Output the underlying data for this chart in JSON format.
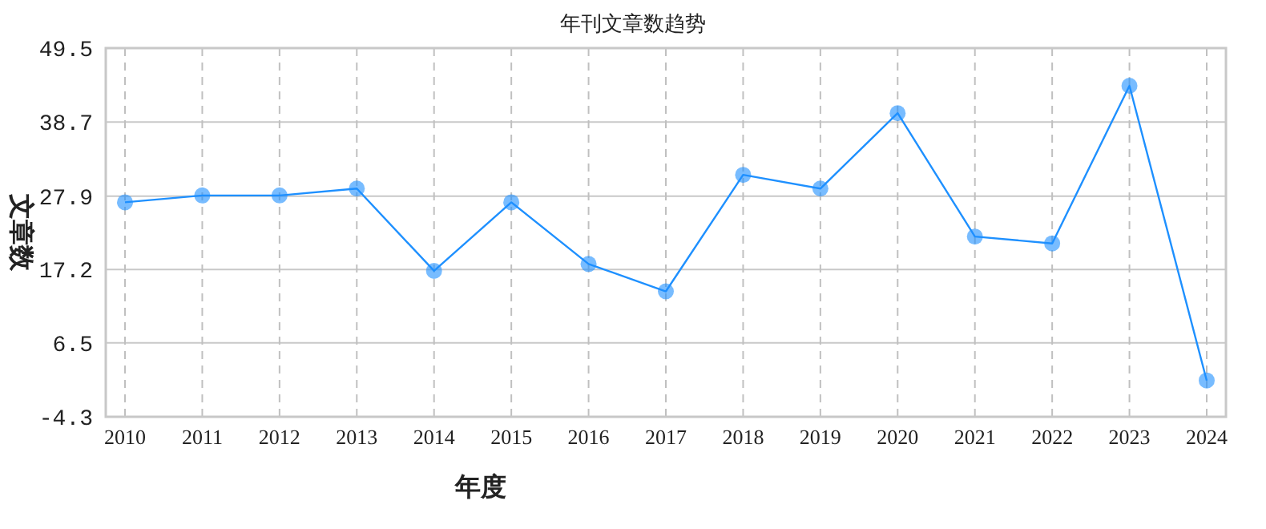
{
  "chart_data": {
    "type": "line",
    "title": "年刊文章数趋势",
    "xlabel": "年度",
    "ylabel": "文章数",
    "categories": [
      "2010",
      "2011",
      "2012",
      "2013",
      "2014",
      "2015",
      "2016",
      "2017",
      "2018",
      "2019",
      "2020",
      "2021",
      "2022",
      "2023",
      "2024"
    ],
    "series": [
      {
        "color": "#1e90ff",
        "values": [
          27,
          28,
          28,
          29,
          17,
          27,
          18,
          14,
          31,
          29,
          40,
          22,
          21,
          44,
          1
        ]
      }
    ],
    "ylim": [
      -4.3,
      49.5
    ],
    "yticks": [
      -4.3,
      6.5,
      17.2,
      27.9,
      38.7,
      49.5
    ],
    "grid": true,
    "marker": "circle"
  }
}
